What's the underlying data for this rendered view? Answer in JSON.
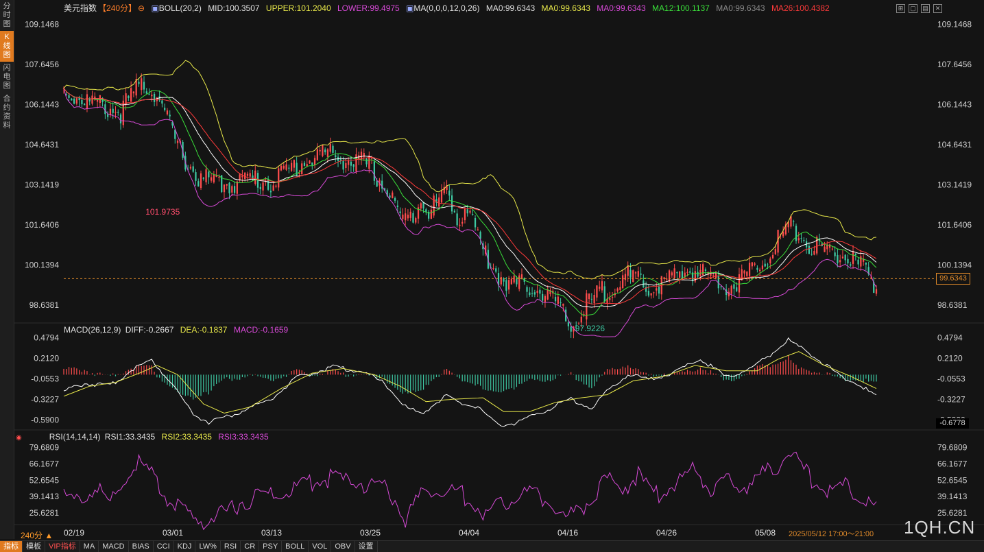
{
  "sidebar": {
    "tabs": [
      {
        "label": "分时图",
        "active": false
      },
      {
        "label": "K线图",
        "active": true
      },
      {
        "label": "闪电图",
        "active": false
      },
      {
        "label": "合约资料",
        "active": false
      }
    ]
  },
  "header": {
    "symbol": "美元指数",
    "period": "【240分】",
    "boll": "BOLL(20,2)",
    "mid": "MID:100.3507",
    "upper": "UPPER:101.2040",
    "lower": "LOWER:99.4975",
    "ma_params": "MA(0,0,0,12,0,26)",
    "ma0a": "MA0:99.6343",
    "ma0b": "MA0:99.6343",
    "ma0c": "MA0:99.6343",
    "ma12": "MA12:100.1137",
    "ma0d": "MA0:99.6343",
    "ma26": "MA26:100.4382"
  },
  "macd_legend": {
    "name": "MACD(26,12,9)",
    "diff": "DIFF:-0.2667",
    "dea": "DEA:-0.1837",
    "macd": "MACD:-0.1659"
  },
  "rsi_legend": {
    "name": "RSI(14,14,14)",
    "rsi1": "RSI1:33.3435",
    "rsi2": "RSI2:33.3435",
    "rsi3": "RSI3:33.3435"
  },
  "price_tag": "99.6343",
  "macd_tag": "-0.6778",
  "period_label": "240分 ▲",
  "time_range": "2025/05/12 17:00～21:00",
  "brand": "1QH.CN",
  "bottom_buttons": [
    "指标",
    "模板",
    "VIP指标",
    "MA",
    "MACD",
    "BIAS",
    "CCI",
    "KDJ",
    "LW%",
    "RSI",
    "CR",
    "PSY",
    "BOLL",
    "VOL",
    "OBV",
    "设置"
  ],
  "colors": {
    "up": "#ff4d4d",
    "down": "#3ec9a3",
    "mid": "#ffffff",
    "upper": "#e8e84a",
    "lower": "#d84ad8",
    "ma12": "#3adf3a",
    "ma26": "#ff3a3a",
    "diff": "#ffffff",
    "dea": "#e8e84a",
    "rsi": "#d84ad8",
    "accent": "#e07a1f"
  },
  "chart_data": [
    {
      "type": "candlestick",
      "title": "美元指数",
      "ylim": [
        98.0,
        109.6
      ],
      "y_ticks": [
        "109.1468",
        "107.6456",
        "106.1443",
        "104.6431",
        "103.1419",
        "101.6406",
        "100.1394",
        "98.6381"
      ],
      "x_ticks": [
        "02/19",
        "03/01",
        "03/13",
        "03/25",
        "04/04",
        "04/16",
        "04/26",
        "05/08"
      ],
      "annotations": {
        "high": "101.9735",
        "low": "97.9226"
      },
      "last_price": 99.6343,
      "close_anchors": [
        [
          0,
          106.9
        ],
        [
          12,
          106.4
        ],
        [
          22,
          106.1
        ],
        [
          30,
          107.2
        ],
        [
          36,
          106.8
        ],
        [
          44,
          104.8
        ],
        [
          52,
          103.6
        ],
        [
          62,
          103.4
        ],
        [
          72,
          103.6
        ],
        [
          80,
          103.5
        ],
        [
          90,
          104.1
        ],
        [
          100,
          104.6
        ],
        [
          110,
          104.3
        ],
        [
          118,
          104.1
        ],
        [
          126,
          103.0
        ],
        [
          132,
          101.9
        ],
        [
          138,
          102.9
        ],
        [
          142,
          102.4
        ],
        [
          148,
          103.2
        ],
        [
          152,
          102.1
        ],
        [
          156,
          102.6
        ],
        [
          162,
          100.9
        ],
        [
          168,
          100.0
        ],
        [
          174,
          99.6
        ],
        [
          182,
          99.6
        ],
        [
          190,
          99.0
        ],
        [
          196,
          98.0
        ],
        [
          202,
          98.9
        ],
        [
          210,
          99.5
        ],
        [
          218,
          99.9
        ],
        [
          226,
          99.5
        ],
        [
          234,
          99.8
        ],
        [
          242,
          100.2
        ],
        [
          250,
          100.0
        ],
        [
          258,
          99.6
        ],
        [
          266,
          100.2
        ],
        [
          272,
          100.8
        ],
        [
          278,
          101.6
        ],
        [
          282,
          101.8
        ],
        [
          288,
          101.1
        ],
        [
          296,
          100.9
        ],
        [
          304,
          100.6
        ],
        [
          310,
          100.1
        ],
        [
          314,
          99.6
        ]
      ]
    },
    {
      "type": "bar+line",
      "title": "MACD(26,12,9)",
      "ylim": [
        -0.7,
        0.52
      ],
      "y_ticks": [
        "0.4794",
        "0.2120",
        "-0.0553",
        "-0.3227",
        "-0.5900"
      ],
      "diff_anchors": [
        [
          0,
          -0.2
        ],
        [
          8,
          -0.1
        ],
        [
          18,
          -0.13
        ],
        [
          28,
          0.12
        ],
        [
          34,
          0.2
        ],
        [
          42,
          -0.1
        ],
        [
          50,
          -0.5
        ],
        [
          56,
          -0.6
        ],
        [
          66,
          -0.5
        ],
        [
          80,
          -0.3
        ],
        [
          90,
          -0.03
        ],
        [
          104,
          0.12
        ],
        [
          116,
          0.05
        ],
        [
          124,
          -0.1
        ],
        [
          132,
          -0.4
        ],
        [
          138,
          -0.5
        ],
        [
          148,
          -0.25
        ],
        [
          152,
          -0.35
        ],
        [
          160,
          -0.4
        ],
        [
          168,
          -0.65
        ],
        [
          176,
          -0.6
        ],
        [
          186,
          -0.45
        ],
        [
          196,
          -0.3
        ],
        [
          204,
          -0.42
        ],
        [
          210,
          -0.2
        ],
        [
          218,
          0.02
        ],
        [
          226,
          -0.05
        ],
        [
          236,
          0.05
        ],
        [
          246,
          0.22
        ],
        [
          256,
          -0.02
        ],
        [
          266,
          0.1
        ],
        [
          274,
          0.3
        ],
        [
          280,
          0.47
        ],
        [
          290,
          0.25
        ],
        [
          300,
          0.0
        ],
        [
          308,
          -0.13
        ],
        [
          314,
          -0.27
        ]
      ],
      "dea_anchors": [
        [
          0,
          -0.28
        ],
        [
          10,
          -0.15
        ],
        [
          20,
          -0.1
        ],
        [
          30,
          0.03
        ],
        [
          36,
          0.12
        ],
        [
          44,
          0.0
        ],
        [
          54,
          -0.38
        ],
        [
          62,
          -0.5
        ],
        [
          72,
          -0.42
        ],
        [
          84,
          -0.18
        ],
        [
          96,
          0.02
        ],
        [
          108,
          0.08
        ],
        [
          120,
          0.0
        ],
        [
          130,
          -0.15
        ],
        [
          140,
          -0.35
        ],
        [
          150,
          -0.32
        ],
        [
          162,
          -0.3
        ],
        [
          170,
          -0.48
        ],
        [
          180,
          -0.48
        ],
        [
          190,
          -0.36
        ],
        [
          200,
          -0.3
        ],
        [
          210,
          -0.26
        ],
        [
          220,
          -0.08
        ],
        [
          232,
          -0.02
        ],
        [
          244,
          0.12
        ],
        [
          256,
          0.05
        ],
        [
          268,
          0.05
        ],
        [
          276,
          0.2
        ],
        [
          284,
          0.3
        ],
        [
          294,
          0.12
        ],
        [
          304,
          -0.02
        ],
        [
          314,
          -0.18
        ]
      ]
    },
    {
      "type": "line",
      "title": "RSI(14,14,14)",
      "ylim": [
        20,
        84
      ],
      "y_ticks": [
        "79.6809",
        "66.1677",
        "52.6545",
        "39.1413",
        "25.6281"
      ],
      "rsi_anchors": [
        [
          0,
          42
        ],
        [
          6,
          40
        ],
        [
          12,
          50
        ],
        [
          18,
          38
        ],
        [
          24,
          58
        ],
        [
          28,
          72
        ],
        [
          34,
          60
        ],
        [
          40,
          42
        ],
        [
          46,
          30
        ],
        [
          52,
          22
        ],
        [
          58,
          26
        ],
        [
          64,
          32
        ],
        [
          70,
          40
        ],
        [
          78,
          45
        ],
        [
          86,
          46
        ],
        [
          94,
          55
        ],
        [
          102,
          58
        ],
        [
          110,
          56
        ],
        [
          118,
          53
        ],
        [
          126,
          48
        ],
        [
          132,
          24
        ],
        [
          136,
          40
        ],
        [
          142,
          50
        ],
        [
          148,
          46
        ],
        [
          152,
          48
        ],
        [
          158,
          38
        ],
        [
          164,
          28
        ],
        [
          170,
          38
        ],
        [
          176,
          48
        ],
        [
          182,
          45
        ],
        [
          188,
          40
        ],
        [
          194,
          26
        ],
        [
          198,
          30
        ],
        [
          204,
          42
        ],
        [
          210,
          58
        ],
        [
          216,
          50
        ],
        [
          222,
          60
        ],
        [
          228,
          44
        ],
        [
          236,
          52
        ],
        [
          244,
          66
        ],
        [
          250,
          48
        ],
        [
          256,
          55
        ],
        [
          262,
          50
        ],
        [
          268,
          60
        ],
        [
          276,
          66
        ],
        [
          280,
          80
        ],
        [
          284,
          70
        ],
        [
          290,
          55
        ],
        [
          296,
          48
        ],
        [
          302,
          52
        ],
        [
          308,
          40
        ],
        [
          314,
          33
        ]
      ]
    }
  ]
}
